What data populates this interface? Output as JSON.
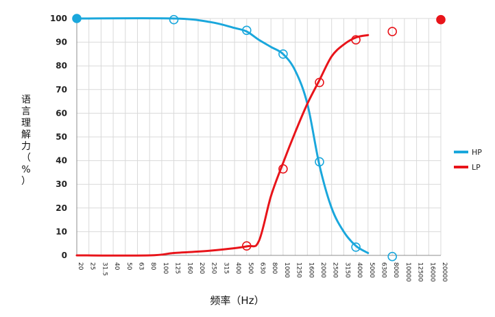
{
  "chart_data": {
    "type": "line",
    "xlabel": "频率（Hz）",
    "ylabel": "语言理解力（%）",
    "x_ticks": [
      "20",
      "25",
      "31.5",
      "40",
      "50",
      "63",
      "80",
      "100",
      "125",
      "160",
      "200",
      "250",
      "315",
      "400",
      "500",
      "630",
      "800",
      "1000",
      "1250",
      "1600",
      "2000",
      "2500",
      "3150",
      "4000",
      "5000",
      "6300",
      "8000",
      "10000",
      "12500",
      "16000",
      "20000"
    ],
    "ylim": [
      0,
      100
    ],
    "y_ticks": [
      0,
      10,
      20,
      30,
      40,
      50,
      60,
      70,
      80,
      90,
      100
    ],
    "grid": true,
    "legend_position": "right",
    "series": [
      {
        "name": "HP",
        "color": "#1aa7dc",
        "curve": [
          [
            "20",
            100
          ],
          [
            "125",
            100
          ],
          [
            "250",
            98.5
          ],
          [
            "400",
            96
          ],
          [
            "500",
            94.5
          ],
          [
            "630",
            91
          ],
          [
            "800",
            88
          ],
          [
            "1000",
            85
          ],
          [
            "1250",
            78
          ],
          [
            "1600",
            64
          ],
          [
            "2000",
            38
          ],
          [
            "2500",
            20
          ],
          [
            "3150",
            10
          ],
          [
            "4000",
            4
          ],
          [
            "5000",
            1
          ]
        ],
        "markers": [
          {
            "x": "20",
            "y": 100,
            "filled": true
          },
          {
            "x": "125",
            "y": 99.5,
            "filled": false
          },
          {
            "x": "500",
            "y": 95,
            "filled": false
          },
          {
            "x": "1000",
            "y": 85,
            "filled": false
          },
          {
            "x": "2000",
            "y": 39.5,
            "filled": false
          },
          {
            "x": "4000",
            "y": 3.5,
            "filled": false
          },
          {
            "x": "8000",
            "y": -0.5,
            "filled": false
          }
        ]
      },
      {
        "name": "LP",
        "color": "#e8141a",
        "curve": [
          [
            "20",
            0
          ],
          [
            "80",
            0
          ],
          [
            "125",
            1
          ],
          [
            "250",
            2
          ],
          [
            "500",
            3.8
          ],
          [
            "630",
            6
          ],
          [
            "800",
            25
          ],
          [
            "1000",
            39
          ],
          [
            "1250",
            52
          ],
          [
            "1600",
            64
          ],
          [
            "2000",
            74
          ],
          [
            "2500",
            84
          ],
          [
            "3150",
            89
          ],
          [
            "4000",
            92
          ],
          [
            "5000",
            93
          ]
        ],
        "markers": [
          {
            "x": "500",
            "y": 4,
            "filled": false
          },
          {
            "x": "1000",
            "y": 36.5,
            "filled": false
          },
          {
            "x": "2000",
            "y": 73,
            "filled": false
          },
          {
            "x": "4000",
            "y": 91,
            "filled": false
          },
          {
            "x": "8000",
            "y": 94.5,
            "filled": false
          },
          {
            "x": "20000",
            "y": 99.5,
            "filled": true
          }
        ]
      }
    ]
  }
}
